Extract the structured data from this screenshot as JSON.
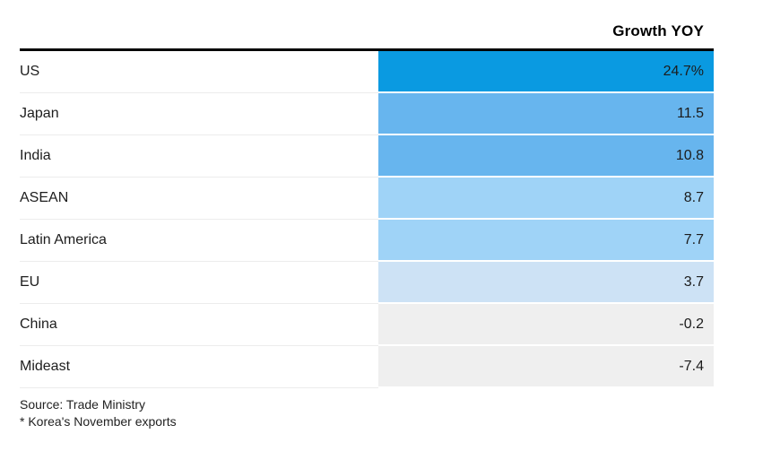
{
  "chart_data": {
    "type": "table",
    "title": "",
    "value_header": "Growth YOY",
    "categories": [
      "US",
      "Japan",
      "India",
      "ASEAN",
      "Latin America",
      "EU",
      "China",
      "Mideast"
    ],
    "values": [
      24.7,
      11.5,
      10.8,
      8.7,
      7.7,
      3.7,
      -0.2,
      -7.4
    ],
    "value_labels": [
      "24.7%",
      "11.5",
      "10.8",
      "8.7",
      "7.7",
      "3.7",
      "-0.2",
      "-7.4"
    ],
    "row_styles": [
      "background:#0a9ae1",
      "background:#67b5ee",
      "background:#67b5ee",
      "background:#9fd3f7",
      "background:#9fd3f7",
      "background:#cde2f5",
      "background:#efefef",
      "background:#efefef"
    ],
    "colors": {
      "highest": "#0a9ae1",
      "high": "#67b5ee",
      "medium": "#9fd3f7",
      "low": "#cde2f5",
      "negative": "#efefef",
      "top_rule": "#000000"
    },
    "layout": {
      "legend_position": "none",
      "grid": "off",
      "value_alignment": "right"
    },
    "source": "Source: Trade Ministry",
    "footnote": "* Korea's November exports"
  }
}
